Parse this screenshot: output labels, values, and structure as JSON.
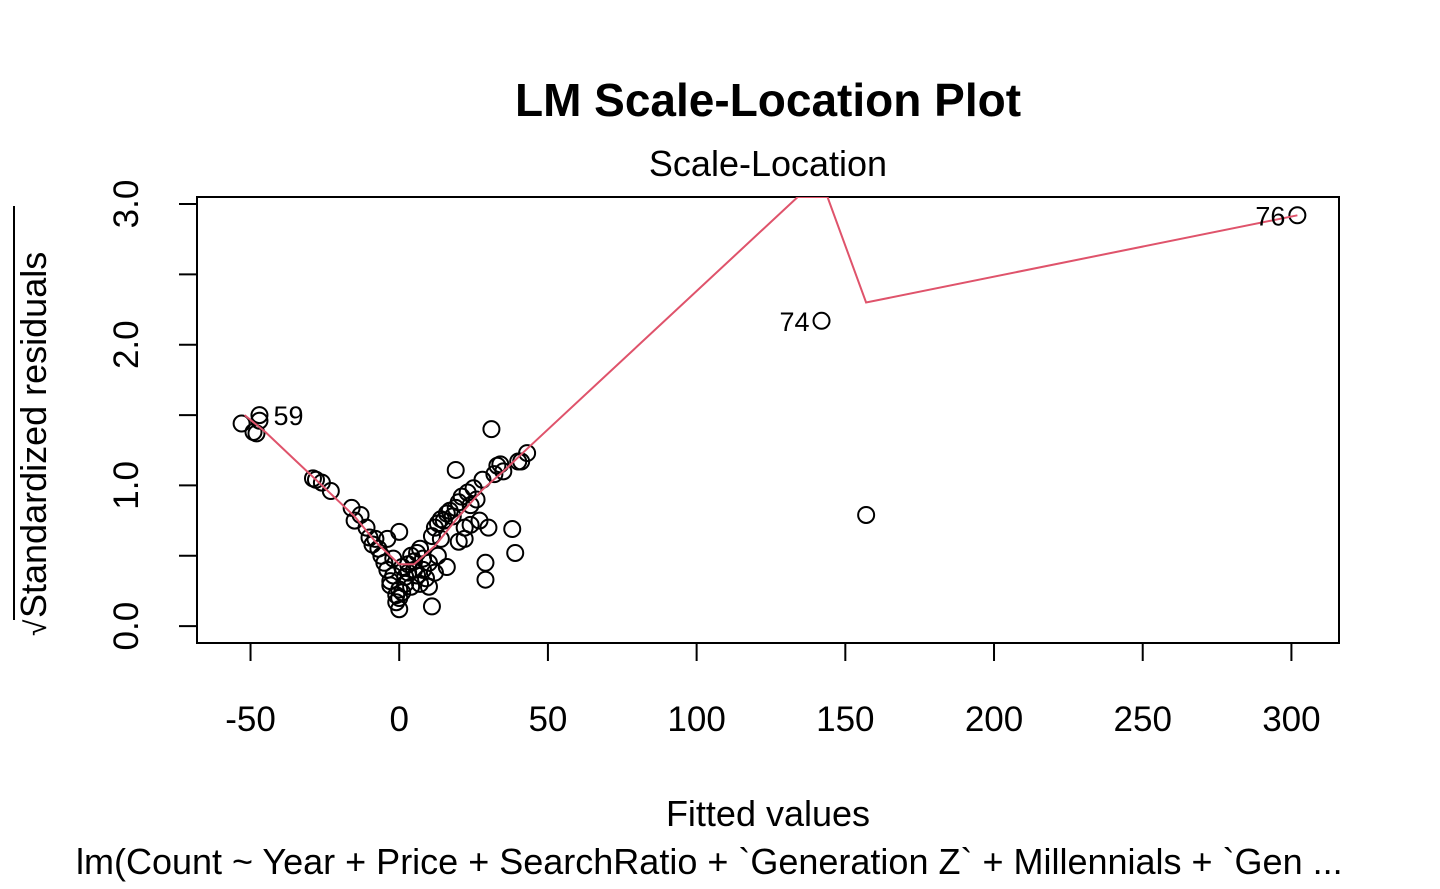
{
  "chart_data": {
    "type": "scatter",
    "title": "LM Scale-Location Plot",
    "subtitle": "Scale-Location",
    "xlabel": "Fitted values",
    "ylabel_radical": "√",
    "ylabel": "Standardized residuals",
    "caption": "lm(Count ~ Year + Price + SearchRatio + `Generation Z` + Millennials + `Gen ...",
    "xlim": [
      -68,
      316
    ],
    "ylim": [
      -0.12,
      3.05
    ],
    "x_ticks": [
      -50,
      0,
      50,
      100,
      150,
      200,
      250,
      300
    ],
    "x_tick_labels": [
      "-50",
      "0",
      "50",
      "100",
      "150",
      "200",
      "250",
      "300"
    ],
    "y_ticks": [
      0.0,
      0.5,
      1.0,
      1.5,
      2.0,
      2.5,
      3.0
    ],
    "y_tick_labels": [
      "0.0",
      "",
      "1.0",
      "",
      "2.0",
      "",
      "3.0"
    ],
    "grid": false,
    "smoother_color": "#DF536B",
    "points": [
      {
        "x": -53,
        "y": 1.44
      },
      {
        "x": -49,
        "y": 1.38
      },
      {
        "x": -48,
        "y": 1.37
      },
      {
        "x": -47,
        "y": 1.46
      },
      {
        "x": -47,
        "y": 1.5
      },
      {
        "x": -29,
        "y": 1.05
      },
      {
        "x": -28,
        "y": 1.04
      },
      {
        "x": -26,
        "y": 1.02
      },
      {
        "x": -23,
        "y": 0.96
      },
      {
        "x": -16,
        "y": 0.84
      },
      {
        "x": -15,
        "y": 0.75
      },
      {
        "x": -13,
        "y": 0.79
      },
      {
        "x": -11,
        "y": 0.7
      },
      {
        "x": -10,
        "y": 0.63
      },
      {
        "x": -9,
        "y": 0.58
      },
      {
        "x": -8,
        "y": 0.62
      },
      {
        "x": -7,
        "y": 0.55
      },
      {
        "x": -6,
        "y": 0.5
      },
      {
        "x": -5,
        "y": 0.45
      },
      {
        "x": -4,
        "y": 0.62
      },
      {
        "x": -4,
        "y": 0.4
      },
      {
        "x": -3,
        "y": 0.32
      },
      {
        "x": -3,
        "y": 0.29
      },
      {
        "x": -2,
        "y": 0.48
      },
      {
        "x": -2,
        "y": 0.36
      },
      {
        "x": -1,
        "y": 0.22
      },
      {
        "x": -1,
        "y": 0.17
      },
      {
        "x": 0,
        "y": 0.12
      },
      {
        "x": 0,
        "y": 0.2
      },
      {
        "x": 0,
        "y": 0.26
      },
      {
        "x": 0,
        "y": 0.67
      },
      {
        "x": 1,
        "y": 0.24
      },
      {
        "x": 1,
        "y": 0.42
      },
      {
        "x": 2,
        "y": 0.3
      },
      {
        "x": 2,
        "y": 0.35
      },
      {
        "x": 3,
        "y": 0.38
      },
      {
        "x": 3,
        "y": 0.44
      },
      {
        "x": 4,
        "y": 0.28
      },
      {
        "x": 4,
        "y": 0.5
      },
      {
        "x": 5,
        "y": 0.4
      },
      {
        "x": 5,
        "y": 0.46
      },
      {
        "x": 6,
        "y": 0.36
      },
      {
        "x": 6,
        "y": 0.52
      },
      {
        "x": 7,
        "y": 0.55
      },
      {
        "x": 7,
        "y": 0.3
      },
      {
        "x": 8,
        "y": 0.4
      },
      {
        "x": 8,
        "y": 0.48
      },
      {
        "x": 9,
        "y": 0.34
      },
      {
        "x": 10,
        "y": 0.28
      },
      {
        "x": 10,
        "y": 0.45
      },
      {
        "x": 11,
        "y": 0.14
      },
      {
        "x": 11,
        "y": 0.64
      },
      {
        "x": 12,
        "y": 0.38
      },
      {
        "x": 12,
        "y": 0.7
      },
      {
        "x": 13,
        "y": 0.5
      },
      {
        "x": 13,
        "y": 0.73
      },
      {
        "x": 14,
        "y": 0.62
      },
      {
        "x": 14,
        "y": 0.76
      },
      {
        "x": 15,
        "y": 0.75
      },
      {
        "x": 16,
        "y": 0.42
      },
      {
        "x": 16,
        "y": 0.8
      },
      {
        "x": 17,
        "y": 0.82
      },
      {
        "x": 18,
        "y": 0.78
      },
      {
        "x": 19,
        "y": 0.84
      },
      {
        "x": 19,
        "y": 1.11
      },
      {
        "x": 20,
        "y": 0.88
      },
      {
        "x": 20,
        "y": 0.6
      },
      {
        "x": 21,
        "y": 0.92
      },
      {
        "x": 22,
        "y": 0.7
      },
      {
        "x": 22,
        "y": 0.62
      },
      {
        "x": 23,
        "y": 0.95
      },
      {
        "x": 24,
        "y": 0.86
      },
      {
        "x": 24,
        "y": 0.72
      },
      {
        "x": 25,
        "y": 0.98
      },
      {
        "x": 26,
        "y": 0.9
      },
      {
        "x": 27,
        "y": 0.75
      },
      {
        "x": 28,
        "y": 1.04
      },
      {
        "x": 29,
        "y": 0.33
      },
      {
        "x": 29,
        "y": 0.45
      },
      {
        "x": 30,
        "y": 0.7
      },
      {
        "x": 31,
        "y": 1.4
      },
      {
        "x": 32,
        "y": 1.08
      },
      {
        "x": 33,
        "y": 1.14
      },
      {
        "x": 34,
        "y": 1.15
      },
      {
        "x": 35,
        "y": 1.1
      },
      {
        "x": 38,
        "y": 0.69
      },
      {
        "x": 39,
        "y": 0.52
      },
      {
        "x": 40,
        "y": 1.17
      },
      {
        "x": 41,
        "y": 1.17
      },
      {
        "x": 43,
        "y": 1.23
      },
      {
        "x": 142,
        "y": 2.17
      },
      {
        "x": 157,
        "y": 0.79
      },
      {
        "x": 302,
        "y": 2.92
      }
    ],
    "point_labels": [
      {
        "text": "59",
        "x": -47,
        "y": 1.5,
        "side": "right"
      },
      {
        "text": "74",
        "x": 142,
        "y": 2.17,
        "side": "left"
      },
      {
        "text": "76",
        "x": 302,
        "y": 2.92,
        "side": "left"
      }
    ],
    "smoother": [
      {
        "x": -52,
        "y": 1.5
      },
      {
        "x": -45,
        "y": 1.38
      },
      {
        "x": -35,
        "y": 1.18
      },
      {
        "x": -25,
        "y": 0.98
      },
      {
        "x": -15,
        "y": 0.78
      },
      {
        "x": -8,
        "y": 0.6
      },
      {
        "x": 0,
        "y": 0.44
      },
      {
        "x": 5,
        "y": 0.44
      },
      {
        "x": 12,
        "y": 0.57
      },
      {
        "x": 20,
        "y": 0.78
      },
      {
        "x": 28,
        "y": 0.97
      },
      {
        "x": 35,
        "y": 1.1
      },
      {
        "x": 43,
        "y": 1.26
      },
      {
        "x": 134,
        "y": 3.05
      },
      {
        "x": 144,
        "y": 3.05
      },
      {
        "x": 157,
        "y": 2.3
      },
      {
        "x": 302,
        "y": 2.92
      }
    ]
  }
}
